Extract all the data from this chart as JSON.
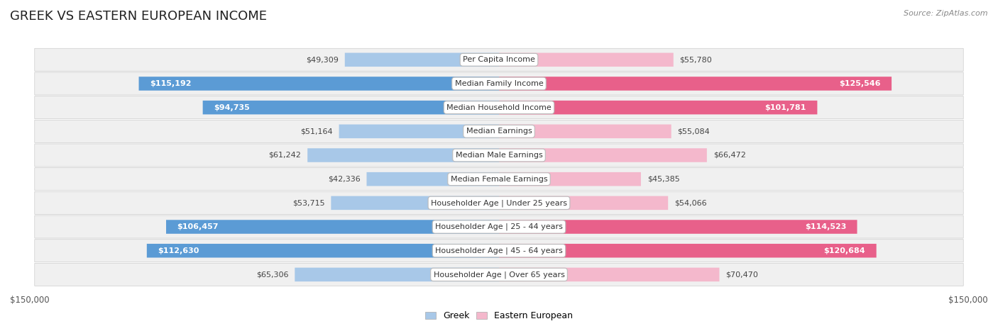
{
  "title": "GREEK VS EASTERN EUROPEAN INCOME",
  "source": "Source: ZipAtlas.com",
  "categories": [
    "Per Capita Income",
    "Median Family Income",
    "Median Household Income",
    "Median Earnings",
    "Median Male Earnings",
    "Median Female Earnings",
    "Householder Age | Under 25 years",
    "Householder Age | 25 - 44 years",
    "Householder Age | 45 - 64 years",
    "Householder Age | Over 65 years"
  ],
  "greek_values": [
    49309,
    115192,
    94735,
    51164,
    61242,
    42336,
    53715,
    106457,
    112630,
    65306
  ],
  "eastern_values": [
    55780,
    125546,
    101781,
    55084,
    66472,
    45385,
    54066,
    114523,
    120684,
    70470
  ],
  "greek_labels": [
    "$49,309",
    "$115,192",
    "$94,735",
    "$51,164",
    "$61,242",
    "$42,336",
    "$53,715",
    "$106,457",
    "$112,630",
    "$65,306"
  ],
  "eastern_labels": [
    "$55,780",
    "$125,546",
    "$101,781",
    "$55,084",
    "$66,472",
    "$45,385",
    "$54,066",
    "$114,523",
    "$120,684",
    "$70,470"
  ],
  "max_value": 150000,
  "greek_color_light": "#a8c8e8",
  "greek_color_dark": "#5b9bd5",
  "eastern_color_light": "#f4b8cc",
  "eastern_color_dark": "#e8608a",
  "bar_height": 0.58,
  "background_color": "#ffffff",
  "row_bg_color": "#f0f0f0",
  "title_fontsize": 13,
  "label_fontsize": 8,
  "category_fontsize": 8,
  "legend_fontsize": 9,
  "axis_label_fontsize": 8.5,
  "large_threshold": 75000
}
